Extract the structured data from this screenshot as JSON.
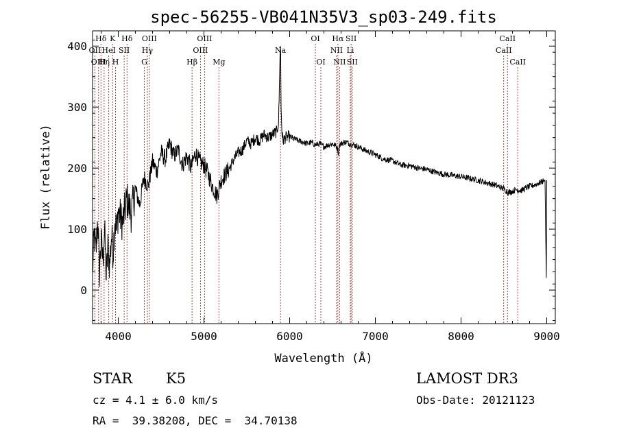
{
  "chart_data": {
    "type": "line",
    "title": "spec-56255-VB041N35V3_sp03-249.fits",
    "xlabel": "Wavelength (Å)",
    "ylabel": "Flux (relative)",
    "xlim": [
      3700,
      9100
    ],
    "ylim": [
      -55,
      425
    ],
    "xticks": [
      4000,
      5000,
      6000,
      7000,
      8000,
      9000
    ],
    "yticks": [
      0,
      100,
      200,
      300,
      400
    ],
    "series": [
      {
        "name": "flux",
        "x": [
          3700,
          3720,
          3740,
          3760,
          3780,
          3800,
          3820,
          3840,
          3860,
          3880,
          3900,
          3920,
          3940,
          3960,
          3980,
          4000,
          4050,
          4100,
          4150,
          4200,
          4250,
          4300,
          4350,
          4400,
          4450,
          4500,
          4550,
          4600,
          4650,
          4700,
          4750,
          4800,
          4850,
          4900,
          4950,
          5000,
          5050,
          5100,
          5150,
          5200,
          5250,
          5300,
          5350,
          5400,
          5450,
          5500,
          5550,
          5600,
          5650,
          5700,
          5750,
          5800,
          5850,
          5870,
          5880,
          5890,
          5895,
          5900,
          5910,
          5920,
          5950,
          6000,
          6050,
          6100,
          6150,
          6200,
          6250,
          6300,
          6350,
          6400,
          6450,
          6500,
          6550,
          6570,
          6580,
          6600,
          6650,
          6700,
          6750,
          6800,
          6900,
          7000,
          7100,
          7200,
          7300,
          7400,
          7500,
          7600,
          7700,
          7800,
          7900,
          8000,
          8100,
          8200,
          8300,
          8400,
          8500,
          8550,
          8600,
          8650,
          8700,
          8750,
          8800,
          8850,
          8900,
          8950,
          8980,
          8995,
          9000
        ],
        "y": [
          30,
          90,
          60,
          120,
          30,
          80,
          50,
          100,
          20,
          70,
          40,
          90,
          60,
          120,
          95,
          130,
          110,
          150,
          125,
          165,
          140,
          185,
          170,
          210,
          195,
          225,
          215,
          240,
          220,
          230,
          205,
          220,
          200,
          225,
          210,
          205,
          190,
          170,
          155,
          180,
          190,
          200,
          215,
          225,
          230,
          245,
          240,
          250,
          245,
          255,
          250,
          255,
          260,
          275,
          330,
          400,
          390,
          300,
          260,
          245,
          250,
          252,
          248,
          245,
          243,
          240,
          242,
          238,
          240,
          235,
          238,
          240,
          235,
          225,
          238,
          240,
          243,
          240,
          238,
          235,
          228,
          222,
          215,
          212,
          205,
          204,
          200,
          198,
          193,
          190,
          188,
          186,
          183,
          180,
          176,
          172,
          166,
          160,
          162,
          165,
          163,
          167,
          170,
          172,
          175,
          178,
          180,
          20,
          180
        ]
      }
    ],
    "lines": [
      {
        "label": "Hδ",
        "x": 3798,
        "row": 0
      },
      {
        "label": "OII",
        "x": 3727,
        "row": 1
      },
      {
        "label": "OIII",
        "x": 3770,
        "row": 2
      },
      {
        "label": "Hη",
        "x": 3835,
        "row": 2
      },
      {
        "label": "HeI",
        "x": 3889,
        "row": 1
      },
      {
        "label": "K",
        "x": 3934,
        "row": 0
      },
      {
        "label": "H",
        "x": 3968,
        "row": 2
      },
      {
        "label": "SII",
        "x": 4069,
        "row": 1
      },
      {
        "label": "Hδ",
        "x": 4102,
        "row": 0
      },
      {
        "label": "G",
        "x": 4304,
        "row": 2
      },
      {
        "label": "OIII",
        "x": 4363,
        "row": 0
      },
      {
        "label": "Hγ",
        "x": 4340,
        "row": 1
      },
      {
        "label": "Hβ",
        "x": 4861,
        "row": 2
      },
      {
        "label": "OIII",
        "x": 4959,
        "row": 1
      },
      {
        "label": "OIII",
        "x": 5007,
        "row": 0
      },
      {
        "label": "Mg",
        "x": 5175,
        "row": 2
      },
      {
        "label": "Na",
        "x": 5893,
        "row": 1
      },
      {
        "label": "OI",
        "x": 6300,
        "row": 0
      },
      {
        "label": "OI",
        "x": 6364,
        "row": 2
      },
      {
        "label": "Hα",
        "x": 6563,
        "row": 0
      },
      {
        "label": "NII",
        "x": 6548,
        "row": 1
      },
      {
        "label": "NII",
        "x": 6583,
        "row": 2
      },
      {
        "label": "SII",
        "x": 6717,
        "row": 0
      },
      {
        "label": "Li",
        "x": 6708,
        "row": 1
      },
      {
        "label": "SII",
        "x": 6731,
        "row": 2
      },
      {
        "label": "CaII",
        "x": 8498,
        "row": 1
      },
      {
        "label": "CaII",
        "x": 8542,
        "row": 0
      },
      {
        "label": "CaII",
        "x": 8662,
        "row": 2
      }
    ],
    "line_color": "#b22222"
  },
  "info": {
    "class": "STAR",
    "subclass": "K5",
    "survey": "LAMOST DR3",
    "cz": "cz = 4.1 ± 6.0 km/s",
    "obs_date": "Obs-Date: 20121123",
    "radec": "RA =  39.38208, DEC =  34.70138"
  }
}
